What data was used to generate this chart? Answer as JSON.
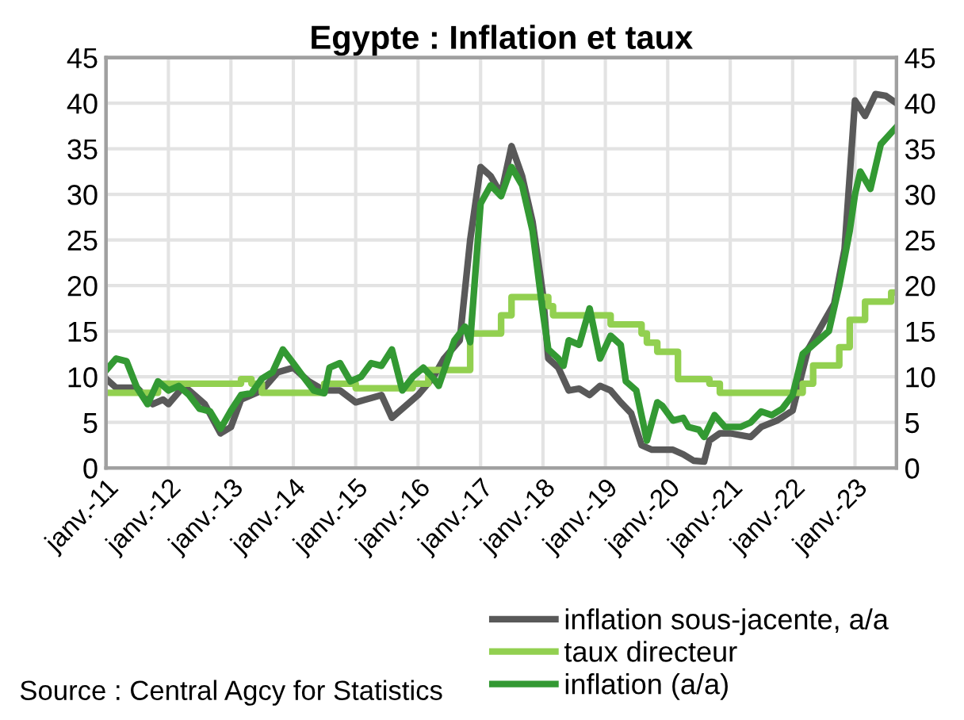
{
  "chart_data": {
    "type": "line",
    "title": "Egypte : Inflation et taux",
    "annotations": [
      "Source : Central Agcy for Statistics"
    ],
    "xlim": [
      "2011-01",
      "2023-09"
    ],
    "xticks": [
      {
        "value": "2011-01",
        "label": "janv.-11"
      },
      {
        "value": "2012-01",
        "label": "janv.-12"
      },
      {
        "value": "2013-01",
        "label": "janv.-13"
      },
      {
        "value": "2014-01",
        "label": "janv.-14"
      },
      {
        "value": "2015-01",
        "label": "janv.-15"
      },
      {
        "value": "2016-01",
        "label": "janv.-16"
      },
      {
        "value": "2017-01",
        "label": "janv.-17"
      },
      {
        "value": "2018-01",
        "label": "janv.-18"
      },
      {
        "value": "2019-01",
        "label": "janv.-19"
      },
      {
        "value": "2020-01",
        "label": "janv.-20"
      },
      {
        "value": "2021-01",
        "label": "janv.-21"
      },
      {
        "value": "2022-01",
        "label": "janv.-22"
      },
      {
        "value": "2023-01",
        "label": "janv.-23"
      }
    ],
    "ylim": [
      0,
      45
    ],
    "yticks": [
      0,
      5,
      10,
      15,
      20,
      25,
      30,
      35,
      40,
      45
    ],
    "y2lim": [
      0,
      45
    ],
    "y2ticks": [
      0,
      5,
      10,
      15,
      20,
      25,
      30,
      35,
      40,
      45
    ],
    "grid": true,
    "legend": "bottom right",
    "marker": "none",
    "line_style": "solid",
    "series": [
      {
        "name": "inflation sous-jacente, a/a",
        "color": "#595959",
        "x": [
          "2011-01",
          "2011-03",
          "2011-07",
          "2011-10",
          "2011-12",
          "2012-01",
          "2012-04",
          "2012-08",
          "2012-11",
          "2013-01",
          "2013-03",
          "2013-07",
          "2013-10",
          "2014-01",
          "2014-04",
          "2014-07",
          "2014-10",
          "2015-01",
          "2015-06",
          "2015-08",
          "2016-01",
          "2016-04",
          "2016-06",
          "2016-09",
          "2016-11",
          "2017-01",
          "2017-03",
          "2017-05",
          "2017-07",
          "2017-09",
          "2017-11",
          "2018-01",
          "2018-02",
          "2018-04",
          "2018-06",
          "2018-08",
          "2018-10",
          "2018-12",
          "2019-02",
          "2019-04",
          "2019-06",
          "2019-08",
          "2019-10",
          "2019-12",
          "2020-02",
          "2020-04",
          "2020-06",
          "2020-08",
          "2020-09",
          "2020-11",
          "2021-01",
          "2021-05",
          "2021-07",
          "2021-10",
          "2022-01",
          "2022-04",
          "2022-06",
          "2022-09",
          "2022-11",
          "2023-01",
          "2023-03",
          "2023-05",
          "2023-07",
          "2023-09"
        ],
        "values": [
          9.8,
          8.8,
          8.8,
          7,
          7.5,
          7,
          9,
          7,
          3.8,
          4.5,
          7.5,
          8.5,
          10.5,
          11,
          9.5,
          8.5,
          8.5,
          7.2,
          8,
          5.5,
          8,
          10,
          12,
          14,
          25,
          33,
          32,
          30,
          35.3,
          32,
          27,
          19,
          12,
          11,
          8.5,
          8.7,
          8,
          9,
          8.5,
          7.2,
          6,
          2.5,
          2,
          2,
          2,
          1.5,
          0.8,
          0.7,
          3,
          3.8,
          3.8,
          3.4,
          4.5,
          5.2,
          6.3,
          13,
          15,
          18,
          24,
          40.3,
          38.6,
          41,
          40.8,
          40
        ]
      },
      {
        "name": "taux directeur",
        "color": "#92d050",
        "type": "step",
        "x": [
          "2011-01",
          "2011-11",
          "2013-03",
          "2013-05",
          "2013-07",
          "2014-07",
          "2015-01",
          "2015-12",
          "2016-03",
          "2016-11",
          "2017-05",
          "2017-07",
          "2018-02",
          "2018-03",
          "2019-02",
          "2019-08",
          "2019-09",
          "2019-11",
          "2020-03",
          "2020-09",
          "2020-11",
          "2022-03",
          "2022-05",
          "2022-10",
          "2022-12",
          "2023-03",
          "2023-08",
          "2023-09"
        ],
        "values": [
          8.25,
          9.25,
          9.75,
          9.25,
          8.25,
          9.25,
          8.75,
          9.25,
          10.75,
          14.75,
          16.75,
          18.75,
          17.75,
          16.75,
          15.75,
          14.75,
          13.75,
          12.75,
          9.75,
          9.25,
          8.25,
          9.25,
          11.25,
          13.25,
          16.25,
          18.25,
          19.25,
          19.25
        ]
      },
      {
        "name": "inflation (a/a)",
        "color": "#339933",
        "x": [
          "2011-01",
          "2011-03",
          "2011-05",
          "2011-07",
          "2011-09",
          "2011-11",
          "2012-01",
          "2012-03",
          "2012-05",
          "2012-07",
          "2012-09",
          "2012-11",
          "2013-01",
          "2013-03",
          "2013-05",
          "2013-07",
          "2013-09",
          "2013-11",
          "2014-01",
          "2014-03",
          "2014-05",
          "2014-07",
          "2014-08",
          "2014-10",
          "2014-12",
          "2015-02",
          "2015-04",
          "2015-06",
          "2015-08",
          "2015-10",
          "2015-12",
          "2016-02",
          "2016-04",
          "2016-05",
          "2016-08",
          "2016-10",
          "2016-11",
          "2017-01",
          "2017-03",
          "2017-05",
          "2017-07",
          "2017-09",
          "2017-11",
          "2018-01",
          "2018-02",
          "2018-04",
          "2018-05",
          "2018-06",
          "2018-08",
          "2018-10",
          "2018-12",
          "2019-02",
          "2019-04",
          "2019-05",
          "2019-07",
          "2019-09",
          "2019-11",
          "2019-12",
          "2020-02",
          "2020-04",
          "2020-05",
          "2020-07",
          "2020-08",
          "2020-10",
          "2020-12",
          "2021-03",
          "2021-05",
          "2021-07",
          "2021-09",
          "2021-11",
          "2022-01",
          "2022-03",
          "2022-05",
          "2022-08",
          "2022-10",
          "2022-12",
          "2023-01",
          "2023-02",
          "2023-04",
          "2023-06",
          "2023-09"
        ],
        "values": [
          10.7,
          12,
          11.7,
          8.8,
          7,
          9.5,
          8.5,
          9,
          8,
          6.5,
          6.2,
          4.3,
          6.3,
          8,
          8.2,
          9.8,
          10.5,
          13,
          11.5,
          10,
          8.5,
          8.2,
          11,
          11.5,
          9.5,
          10,
          11.5,
          11.2,
          13,
          8.5,
          10,
          11,
          9.8,
          9,
          14,
          15.5,
          13.8,
          29,
          31,
          29.8,
          33,
          31,
          26,
          17,
          13,
          12,
          11.2,
          14,
          13.5,
          17.5,
          12,
          14.5,
          13.5,
          9.5,
          8.5,
          3,
          7.2,
          6.8,
          5.2,
          5.5,
          4.5,
          4.2,
          3.4,
          5.8,
          4.5,
          4.5,
          5,
          6.2,
          5.8,
          6.5,
          8,
          12.5,
          13.5,
          15,
          20,
          26,
          30,
          32.5,
          30.6,
          35.5,
          37.4
        ]
      }
    ]
  }
}
